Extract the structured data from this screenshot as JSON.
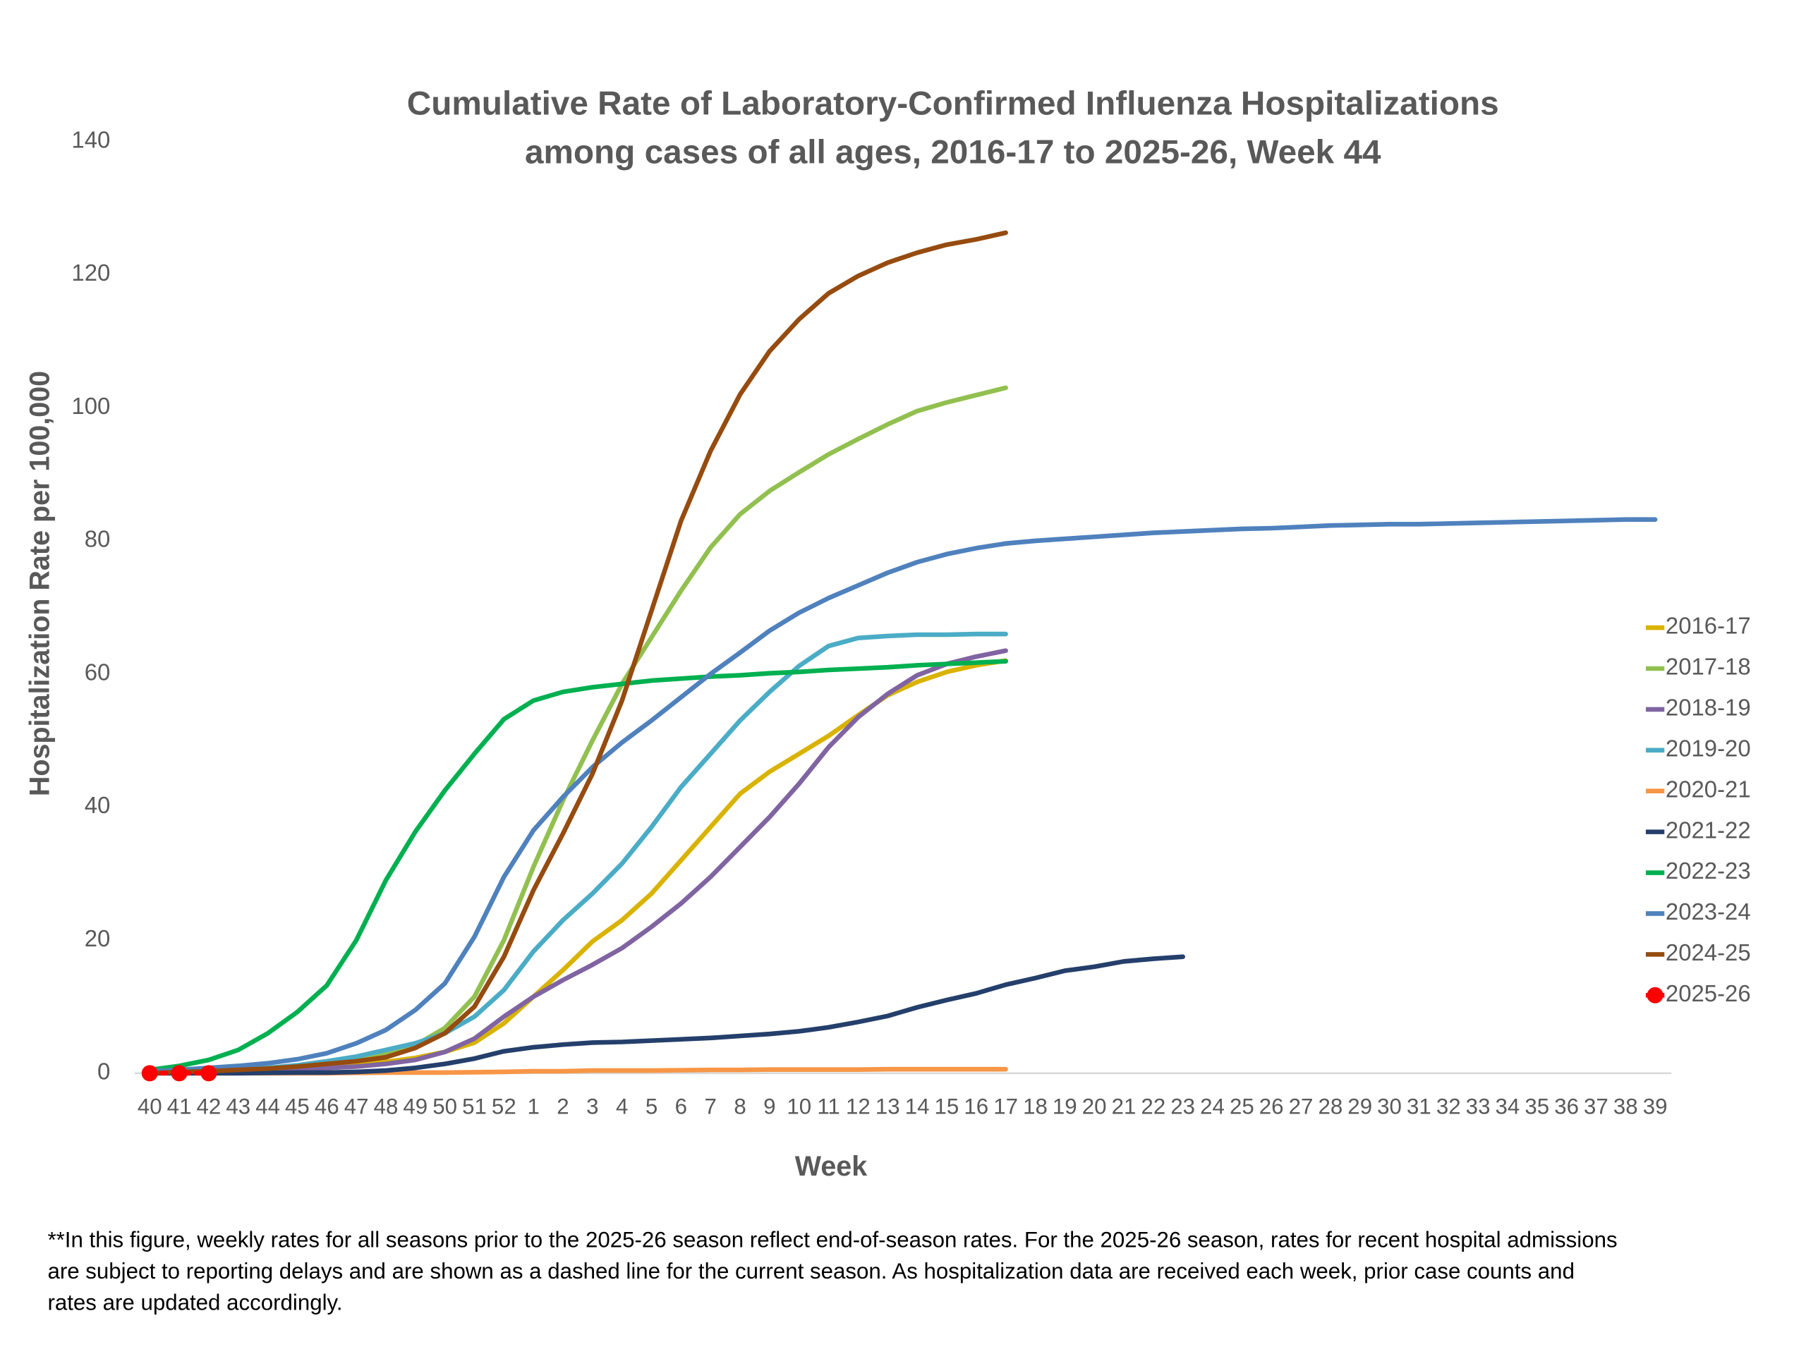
{
  "chart_data": {
    "type": "line",
    "title": "Cumulative Rate of Laboratory-Confirmed Influenza Hospitalizations",
    "subtitle": "among cases of all ages, 2016-17 to 2025-26, Week 44",
    "x_label": "Week",
    "y_label": "Hospitalization Rate per 100,000",
    "categories": [
      "40",
      "41",
      "42",
      "43",
      "44",
      "45",
      "46",
      "47",
      "48",
      "49",
      "50",
      "51",
      "52",
      "1",
      "2",
      "3",
      "4",
      "5",
      "6",
      "7",
      "8",
      "9",
      "10",
      "11",
      "12",
      "13",
      "14",
      "15",
      "16",
      "17",
      "18",
      "19",
      "20",
      "21",
      "22",
      "23",
      "24",
      "25",
      "26",
      "27",
      "28",
      "29",
      "30",
      "31",
      "32",
      "33",
      "34",
      "35",
      "36",
      "37",
      "38",
      "39"
    ],
    "ylim": [
      0,
      140
    ],
    "yticks": [
      0,
      20,
      40,
      60,
      80,
      100,
      120,
      140
    ],
    "grid": false,
    "legend": "right",
    "series": [
      {
        "name": "2016-17",
        "color": "#d9b300",
        "values": [
          0,
          0.1,
          0.2,
          0.3,
          0.5,
          0.7,
          1,
          1.3,
          1.7,
          2.3,
          3.2,
          4.6,
          7.5,
          11.5,
          15.5,
          19.8,
          23,
          27,
          32,
          37,
          42,
          45.3,
          48,
          50.7,
          53.8,
          56.8,
          58.8,
          60.3,
          61.3,
          62,
          null,
          null,
          null,
          null,
          null,
          null,
          null,
          null,
          null,
          null,
          null,
          null,
          null,
          null,
          null,
          null,
          null,
          null,
          null,
          null,
          null,
          null
        ]
      },
      {
        "name": "2017-18",
        "color": "#92c050",
        "values": [
          0,
          0.2,
          0.3,
          0.5,
          0.7,
          1,
          1.5,
          2.2,
          3,
          4.2,
          6.8,
          11.5,
          20,
          31,
          41,
          50,
          58.5,
          65.5,
          72.5,
          79,
          84,
          87.5,
          90.3,
          93,
          95.3,
          97.5,
          99.5,
          100.8,
          101.9,
          103,
          null,
          null,
          null,
          null,
          null,
          null,
          null,
          null,
          null,
          null,
          null,
          null,
          null,
          null,
          null,
          null,
          null,
          null,
          null,
          null,
          null,
          null
        ]
      },
      {
        "name": "2018-19",
        "color": "#8064a2",
        "values": [
          0,
          0.1,
          0.2,
          0.3,
          0.4,
          0.6,
          0.8,
          1,
          1.4,
          2,
          3.2,
          5.2,
          8.5,
          11.5,
          14,
          16.3,
          18.8,
          22,
          25.5,
          29.5,
          34,
          38.5,
          43.5,
          49,
          53.5,
          57,
          59.8,
          61.5,
          62.6,
          63.5,
          null,
          null,
          null,
          null,
          null,
          null,
          null,
          null,
          null,
          null,
          null,
          null,
          null,
          null,
          null,
          null,
          null,
          null,
          null,
          null,
          null,
          null
        ]
      },
      {
        "name": "2019-20",
        "color": "#4bacc6",
        "values": [
          0,
          0.2,
          0.3,
          0.5,
          0.8,
          1.2,
          1.8,
          2.5,
          3.5,
          4.5,
          6,
          8.5,
          12.5,
          18.3,
          23,
          27,
          31.5,
          37,
          43,
          48,
          53,
          57.3,
          61.2,
          64.2,
          65.4,
          65.7,
          65.9,
          65.9,
          66,
          66,
          null,
          null,
          null,
          null,
          null,
          null,
          null,
          null,
          null,
          null,
          null,
          null,
          null,
          null,
          null,
          null,
          null,
          null,
          null,
          null,
          null,
          null
        ]
      },
      {
        "name": "2020-21",
        "color": "#f79646",
        "values": [
          0,
          0,
          0,
          0,
          0,
          0,
          0,
          0.05,
          0.1,
          0.1,
          0.1,
          0.15,
          0.2,
          0.3,
          0.3,
          0.4,
          0.4,
          0.4,
          0.45,
          0.5,
          0.5,
          0.55,
          0.55,
          0.55,
          0.55,
          0.6,
          0.6,
          0.6,
          0.6,
          0.6,
          null,
          null,
          null,
          null,
          null,
          null,
          null,
          null,
          null,
          null,
          null,
          null,
          null,
          null,
          null,
          null,
          null,
          null,
          null,
          null,
          null,
          null
        ]
      },
      {
        "name": "2021-22",
        "color": "#243f6b",
        "values": [
          0,
          0,
          0,
          0,
          0.05,
          0.1,
          0.1,
          0.2,
          0.4,
          0.8,
          1.4,
          2.2,
          3.3,
          3.9,
          4.3,
          4.6,
          4.7,
          4.9,
          5.1,
          5.3,
          5.6,
          5.9,
          6.3,
          6.9,
          7.7,
          8.6,
          9.9,
          11,
          12,
          13.3,
          14.3,
          15.4,
          16,
          16.8,
          17.2,
          17.5,
          null,
          null,
          null,
          null,
          null,
          null,
          null,
          null,
          null,
          null,
          null,
          null,
          null,
          null,
          null,
          null
        ]
      },
      {
        "name": "2022-23",
        "color": "#00b050",
        "values": [
          0.5,
          1.1,
          2,
          3.5,
          6,
          9.2,
          13.2,
          20,
          29,
          36.3,
          42.5,
          48,
          53.2,
          56,
          57.3,
          58,
          58.5,
          59,
          59.3,
          59.6,
          59.8,
          60.1,
          60.3,
          60.6,
          60.8,
          61,
          61.3,
          61.5,
          61.7,
          61.9,
          null,
          null,
          null,
          null,
          null,
          null,
          null,
          null,
          null,
          null,
          null,
          null,
          null,
          null,
          null,
          null,
          null,
          null,
          null,
          null,
          null,
          null
        ]
      },
      {
        "name": "2023-24",
        "color": "#4f81bd",
        "values": [
          0.3,
          0.5,
          0.8,
          1.1,
          1.5,
          2.1,
          3,
          4.5,
          6.5,
          9.5,
          13.5,
          20.5,
          29.5,
          36.5,
          41.5,
          46,
          49.7,
          53,
          56.5,
          60,
          63.2,
          66.5,
          69.2,
          71.4,
          73.3,
          75.2,
          76.8,
          78,
          78.9,
          79.6,
          80,
          80.3,
          80.6,
          80.9,
          81.2,
          81.4,
          81.6,
          81.8,
          81.9,
          82.1,
          82.3,
          82.4,
          82.5,
          82.5,
          82.6,
          82.7,
          82.8,
          82.9,
          83,
          83.1,
          83.2,
          83.2
        ]
      },
      {
        "name": "2024-25",
        "color": "#964B0F",
        "values": [
          0,
          0.2,
          0.3,
          0.5,
          0.7,
          1,
          1.4,
          1.8,
          2.4,
          3.8,
          6,
          10,
          17.5,
          27.5,
          36,
          45,
          56,
          69.5,
          83,
          93.5,
          102,
          108.5,
          113.3,
          117.2,
          119.8,
          121.8,
          123.3,
          124.5,
          125.3,
          126.3,
          null,
          null,
          null,
          null,
          null,
          null,
          null,
          null,
          null,
          null,
          null,
          null,
          null,
          null,
          null,
          null,
          null,
          null,
          null,
          null,
          null,
          null
        ]
      },
      {
        "name": "2025-26",
        "color": "#ff0000",
        "marker": "circle",
        "line_style": "dashed",
        "values": [
          0,
          0,
          0,
          null,
          null,
          null,
          null,
          null,
          null,
          null,
          null,
          null,
          null,
          null,
          null,
          null,
          null,
          null,
          null,
          null,
          null,
          null,
          null,
          null,
          null,
          null,
          null,
          null,
          null,
          null,
          null,
          null,
          null,
          null,
          null,
          null,
          null,
          null,
          null,
          null,
          null,
          null,
          null,
          null,
          null,
          null,
          null,
          null,
          null,
          null,
          null,
          null
        ]
      }
    ],
    "footnote": [
      "**In this figure, weekly rates for all seasons prior to the 2025-26 season reflect end-of-season rates. For the 2025-26 season, rates for recent hospital admissions",
      "are subject to reporting delays and are shown as a dashed line for the current season. As hospitalization data are received each week, prior case counts and",
      "rates are updated accordingly."
    ]
  }
}
